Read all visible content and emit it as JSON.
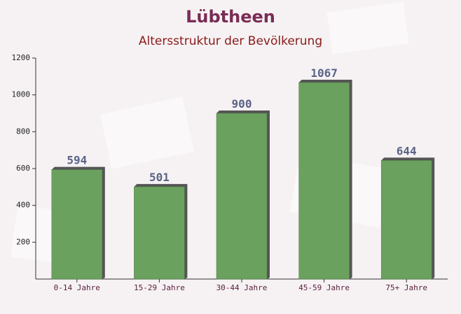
{
  "chart_data": {
    "type": "bar",
    "title": "Lübtheen",
    "subtitle": "Altersstruktur der Bevölkerung",
    "categories": [
      "0-14 Jahre",
      "15-29 Jahre",
      "30-44 Jahre",
      "45-59 Jahre",
      "75+ Jahre"
    ],
    "values": [
      594,
      501,
      900,
      1067,
      644
    ],
    "color": "#6aa15e",
    "ylim": [
      0,
      1200
    ],
    "yticks": [
      200,
      400,
      600,
      800,
      1000,
      1200
    ]
  }
}
